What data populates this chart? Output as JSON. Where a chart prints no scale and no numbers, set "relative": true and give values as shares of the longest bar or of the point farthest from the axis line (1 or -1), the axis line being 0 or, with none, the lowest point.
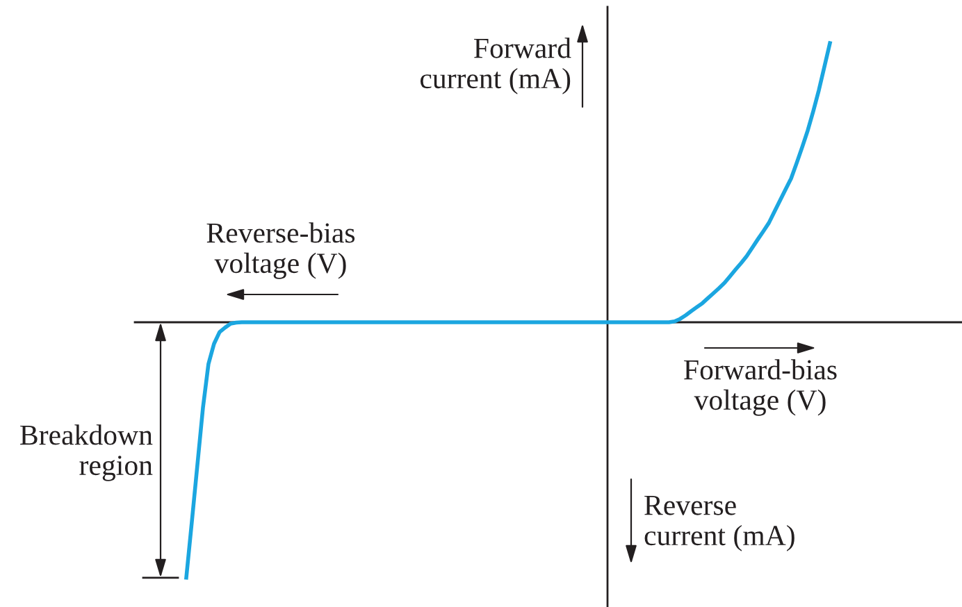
{
  "chart_data": {
    "type": "line",
    "relative": true,
    "color": "#1ba6e0",
    "xlabel": "Forward-bias voltage (V)",
    "ylabel": "Forward current (mA)",
    "annotations": [
      "Reverse-bias voltage (V)",
      "Reverse current (mA)",
      "Breakdown region"
    ],
    "categories": [
      null,
      null,
      null,
      null,
      null,
      null,
      null,
      null,
      null,
      null,
      null,
      null,
      null,
      null,
      null,
      null,
      null,
      null,
      null,
      null,
      null,
      null,
      null,
      null,
      null,
      null,
      null,
      null,
      null,
      null,
      null,
      null,
      null,
      null,
      null,
      null,
      null,
      null,
      null,
      null,
      null,
      null,
      null,
      null,
      null,
      null,
      null,
      null,
      null,
      null,
      null,
      null,
      null,
      null,
      null,
      null,
      null,
      null,
      null,
      null,
      null,
      null,
      null,
      null,
      null,
      null,
      null,
      null,
      null,
      null,
      null,
      null,
      null,
      null,
      null,
      null,
      null,
      null,
      null,
      null,
      null,
      null,
      null,
      null,
      null,
      null,
      null,
      null,
      null,
      null,
      null,
      null,
      null,
      null,
      null,
      null,
      null,
      null,
      null,
      null,
      null,
      null,
      null,
      null,
      null,
      null,
      null,
      null,
      null,
      null,
      null,
      null,
      null,
      null,
      null,
      null,
      null
    ],
    "values": [
      -0.915,
      -0.715,
      -0.511,
      -0.307,
      -0.149,
      -0.077,
      -0.035,
      -0.019,
      -0.005,
      -0.001,
      0,
      0,
      0,
      0,
      0,
      0,
      0,
      0,
      0,
      0,
      0,
      0,
      0,
      0,
      0,
      0,
      0,
      0,
      0,
      0,
      0,
      0,
      0,
      0,
      0,
      0,
      0,
      0,
      0,
      0,
      0,
      0,
      0,
      0,
      0,
      0,
      0,
      0,
      0,
      0,
      0,
      0,
      0,
      0,
      0,
      0,
      0,
      0,
      0,
      0,
      0,
      0,
      0,
      0,
      0,
      0,
      0,
      0,
      0,
      0,
      0,
      0,
      0,
      0,
      0,
      0,
      0,
      0,
      0,
      0,
      0,
      0,
      0,
      0,
      0,
      0,
      0,
      0,
      0.003,
      0.012,
      0.025,
      0.04,
      0.054,
      0.068,
      0.086,
      0.104,
      0.122,
      0.141,
      0.165,
      0.189,
      0.212,
      0.237,
      0.267,
      0.297,
      0.326,
      0.356,
      0.396,
      0.436,
      0.476,
      0.515,
      0.57,
      0.627,
      0.687,
      0.756,
      0.831,
      0.915,
      1
    ]
  }
}
